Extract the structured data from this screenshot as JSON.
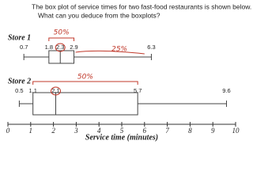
{
  "chart_data": {
    "type": "box",
    "title": "The box plot of service times for two fast-food restaurants is shown below.",
    "subtitle": "What can you deduce from the boxplots?",
    "series": [
      {
        "name": "Store 1",
        "min": 0.7,
        "q1": 1.8,
        "median": 2.3,
        "q3": 2.9,
        "max": 6.3
      },
      {
        "name": "Store 2",
        "min": 0.5,
        "q1": 1.1,
        "median": 2.1,
        "q3": 5.7,
        "max": 9.6
      }
    ],
    "xlim": [
      0,
      10
    ],
    "xticks": [
      0,
      1,
      2,
      3,
      4,
      5,
      6,
      7,
      8,
      9,
      10
    ],
    "xlabel": "Service time (minutes)",
    "annotations": [
      "50%",
      "25%",
      "50%"
    ]
  }
}
